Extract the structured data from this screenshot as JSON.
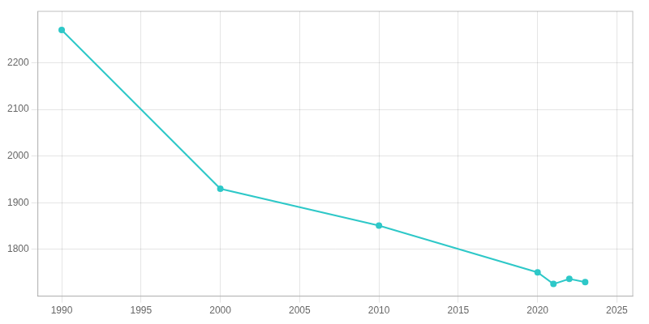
{
  "chart_data": {
    "type": "line",
    "x": [
      1990,
      2000,
      2010,
      2020,
      2021,
      2022,
      2023
    ],
    "values": [
      2270,
      1930,
      1851,
      1751,
      1726,
      1737,
      1730
    ],
    "color": "#2ec8c8",
    "marker": "circle",
    "xlim": [
      1988.5,
      2026
    ],
    "xticks": [
      1990,
      1995,
      2000,
      2005,
      2010,
      2015,
      2020,
      2025
    ],
    "ylim": [
      1700,
      2310
    ],
    "yticks": [
      1800,
      1900,
      2000,
      2100,
      2200
    ],
    "grid": true
  }
}
